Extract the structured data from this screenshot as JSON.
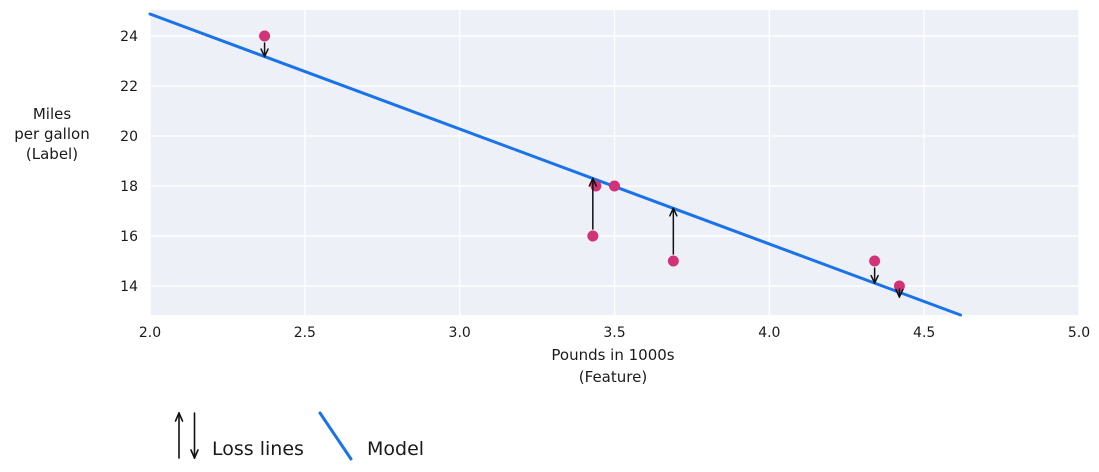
{
  "chart_data": {
    "type": "scatter",
    "title": "",
    "xlabel_lines": [
      "Pounds in 1000s",
      "(Feature)"
    ],
    "ylabel_lines": [
      "Miles",
      "per gallon",
      "(Label)"
    ],
    "xlim": [
      2.0,
      5.0
    ],
    "ylim": [
      12.84,
      25.04
    ],
    "grid": true,
    "legend_position": "bottom-left",
    "xticks": {
      "values": [
        2.0,
        2.5,
        3.0,
        3.5,
        4.0,
        4.5,
        5.0
      ],
      "labels": [
        "2.0",
        "2.5",
        "3.0",
        "3.5",
        "4.0",
        "4.5",
        "5.0"
      ]
    },
    "yticks": {
      "values": [
        14,
        16,
        18,
        20,
        22,
        24
      ],
      "labels": [
        "14",
        "16",
        "18",
        "20",
        "22",
        "24"
      ]
    },
    "points": [
      {
        "x": 2.37,
        "y": 24,
        "loss_arrow": true
      },
      {
        "x": 3.43,
        "y": 16,
        "loss_arrow": true
      },
      {
        "x": 3.44,
        "y": 18,
        "loss_arrow": false
      },
      {
        "x": 3.5,
        "y": 18,
        "loss_arrow": false
      },
      {
        "x": 3.69,
        "y": 15,
        "loss_arrow": true
      },
      {
        "x": 4.34,
        "y": 15,
        "loss_arrow": true
      },
      {
        "x": 4.42,
        "y": 14,
        "loss_arrow": true
      }
    ],
    "model": {
      "slope": -4.6,
      "intercept": 34.08
    },
    "legend": [
      {
        "label": "Loss lines",
        "symbol": "arrows"
      },
      {
        "label": "Model",
        "symbol": "line"
      }
    ],
    "colors": {
      "plot_bg": "#edf1f7",
      "grid": "#ffffff",
      "model_line": "#1a73e8",
      "point": "#d23377",
      "loss_arrow": "#111111",
      "text": "#1a1a1a"
    }
  }
}
